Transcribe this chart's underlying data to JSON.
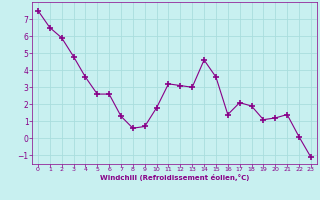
{
  "x": [
    0,
    1,
    2,
    3,
    4,
    5,
    6,
    7,
    8,
    9,
    10,
    11,
    12,
    13,
    14,
    15,
    16,
    17,
    18,
    19,
    20,
    21,
    22,
    23
  ],
  "y": [
    7.5,
    6.5,
    5.9,
    4.8,
    3.6,
    2.6,
    2.6,
    1.3,
    0.6,
    0.7,
    1.8,
    3.2,
    3.1,
    3.0,
    4.6,
    3.6,
    1.4,
    2.1,
    1.9,
    1.1,
    1.2,
    1.4,
    0.1,
    -1.1
  ],
  "line_color": "#880088",
  "marker": "+",
  "marker_color": "#880088",
  "bg_color": "#c8f0f0",
  "grid_color": "#aadddd",
  "xlabel": "Windchill (Refroidissement éolien,°C)",
  "xlabel_color": "#880088",
  "tick_color": "#880088",
  "ylim": [
    -1.5,
    8.0
  ],
  "xlim": [
    -0.5,
    23.5
  ],
  "yticks": [
    -1,
    0,
    1,
    2,
    3,
    4,
    5,
    6,
    7
  ],
  "xticks": [
    0,
    1,
    2,
    3,
    4,
    5,
    6,
    7,
    8,
    9,
    10,
    11,
    12,
    13,
    14,
    15,
    16,
    17,
    18,
    19,
    20,
    21,
    22,
    23
  ]
}
